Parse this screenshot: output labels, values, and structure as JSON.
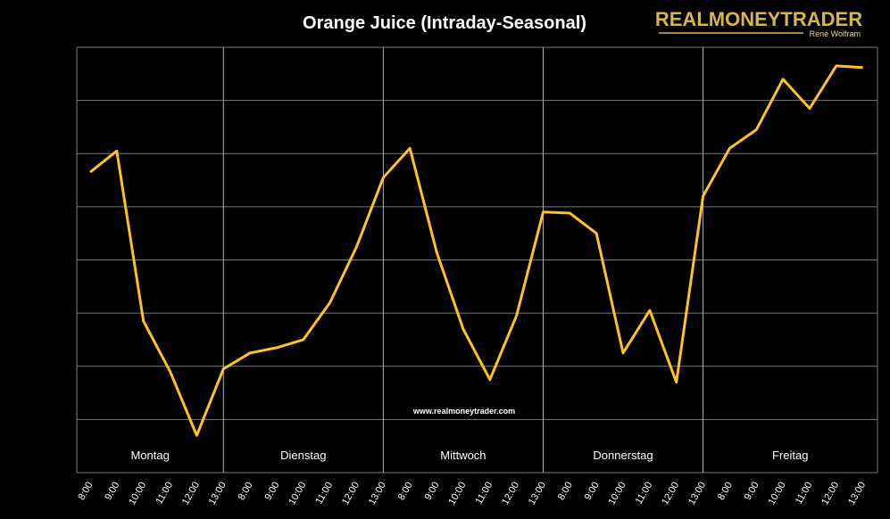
{
  "colors": {
    "background": "#000000",
    "line": "#ffc125",
    "grid": "#7a7a7a",
    "logo_gold": "#d6b54a"
  },
  "logo": {
    "name": "REALMONEYTRADER",
    "author": "René Wolfram"
  },
  "watermark": "www.realmoneytrader.com",
  "chart_data": {
    "type": "line",
    "title": "Orange Juice (Intraday-Seasonal)",
    "xlabel": "",
    "ylabel": "",
    "ylim": [
      0,
      8
    ],
    "grid": true,
    "days": [
      "Montag",
      "Dienstag",
      "Mittwoch",
      "Donnerstag",
      "Freitag"
    ],
    "categories": [
      "8:00",
      "9:00",
      "10:00",
      "11:00",
      "12:00",
      "13:00",
      "8:00",
      "9:00",
      "10:00",
      "11:00",
      "12:00",
      "13:00",
      "8:00",
      "9:00",
      "10:00",
      "11:00",
      "12:00",
      "13:00",
      "8:00",
      "9:00",
      "10:00",
      "11:00",
      "12:00",
      "13:00",
      "8:00",
      "9:00",
      "10:00",
      "11:00",
      "12:00",
      "13:00"
    ],
    "values": [
      5.65,
      6.05,
      2.85,
      1.9,
      0.7,
      1.95,
      2.25,
      2.35,
      2.5,
      3.2,
      4.25,
      5.55,
      6.1,
      4.15,
      2.7,
      1.75,
      2.95,
      4.9,
      4.88,
      4.5,
      2.25,
      3.05,
      1.7,
      5.2,
      6.1,
      6.45,
      7.4,
      6.85,
      7.65,
      7.62
    ]
  }
}
